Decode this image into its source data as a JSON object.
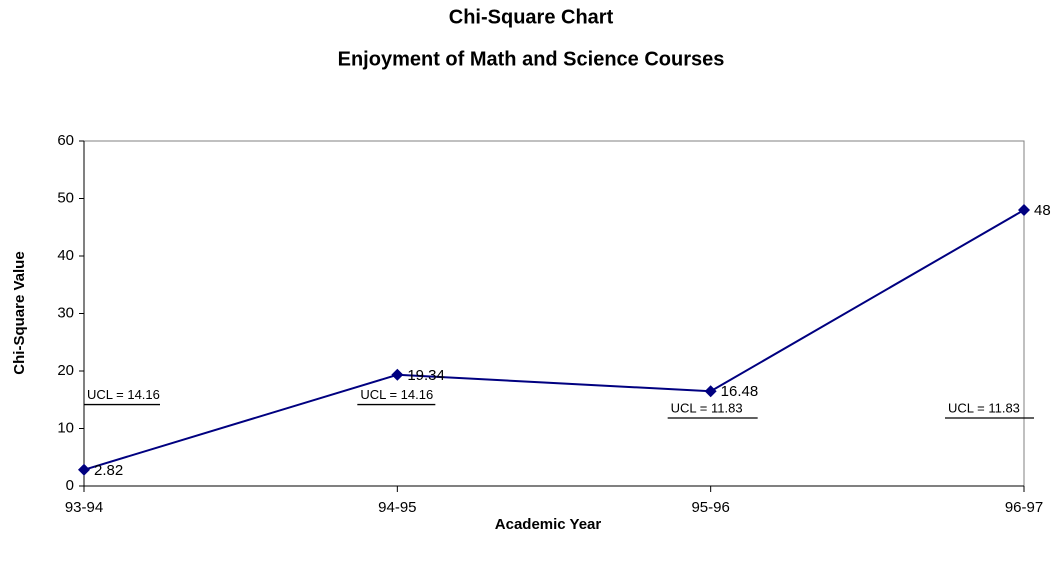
{
  "chart_data": {
    "type": "line",
    "title": "Chi-Square Chart",
    "subtitle": "Enjoyment of Math and Science Courses",
    "x_label": "Academic Year",
    "y_label": "Chi-Square Value",
    "categories": [
      "93-94",
      "94-95",
      "95-96",
      "96-97"
    ],
    "series": [
      {
        "name": "Chi-Square Value",
        "color": "#000080",
        "values": [
          2.82,
          19.34,
          16.48,
          48
        ]
      }
    ],
    "ucl_values": [
      14.16,
      14.16,
      11.83,
      11.83
    ],
    "ucl_labels": [
      "UCL = 14.16",
      "UCL = 14.16",
      "UCL = 11.83",
      "UCL = 11.83"
    ],
    "ylim": [
      0,
      60
    ],
    "yticks": [
      0,
      10,
      20,
      30,
      40,
      50,
      60
    ],
    "grid": false
  }
}
